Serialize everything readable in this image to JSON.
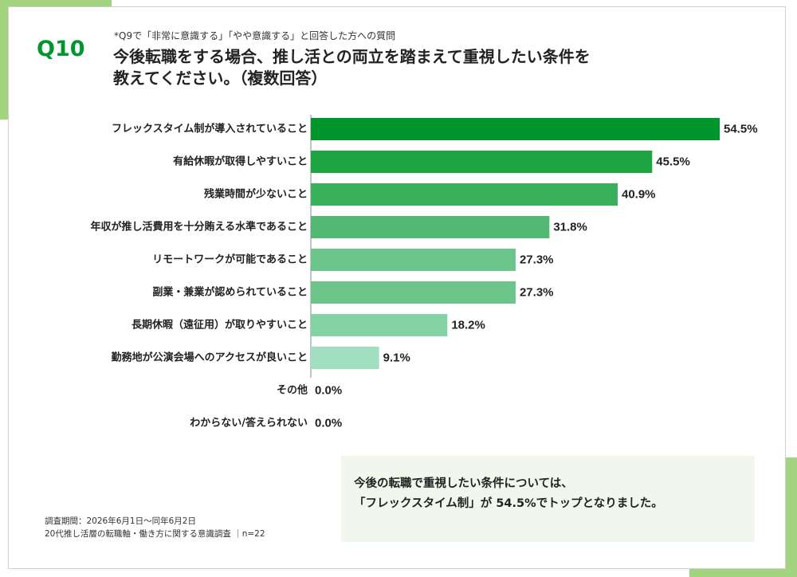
{
  "theme": {
    "accent": "#00962e",
    "frame_accent": "#a2d37f"
  },
  "header": {
    "question_no": "Q10",
    "note": "*Q9で「非常に意識する」「やや意識する」と回答した方への質問",
    "title_line1": "今後転職をする場合、推し活との両立を踏まえて重視したい条件を",
    "title_line2": "教えてください。（複数回答）"
  },
  "chart_data": {
    "type": "bar",
    "orientation": "horizontal",
    "title": "",
    "xlabel": "",
    "ylabel": "",
    "unit": "%",
    "xlim": [
      0,
      54.5
    ],
    "grid": false,
    "legend": "none",
    "categories": [
      "フレックスタイム制が導入されていること",
      "有給休暇が取得しやすいこと",
      "残業時間が少ないこと",
      "年収が推し活費用を十分賄える水準であること",
      "リモートワークが可能であること",
      "副業・兼業が認められていること",
      "長期休暇（遠征用）が取りやすいこと",
      "勤務地が公演会場へのアクセスが良いこと",
      "その他",
      "わからない/答えられない"
    ],
    "values": [
      54.5,
      45.5,
      40.9,
      31.8,
      27.3,
      27.3,
      18.2,
      9.1,
      0.0,
      0.0
    ],
    "value_labels": [
      "54.5%",
      "45.5%",
      "40.9%",
      "31.8%",
      "27.3%",
      "27.3%",
      "18.2%",
      "9.1%",
      "0.0%",
      "0.0%"
    ],
    "colors": [
      "#00962e",
      "#1fa442",
      "#3aaf5c",
      "#52b973",
      "#6cc58b",
      "#6cc58b",
      "#85d2a2",
      "#a0dfbf",
      "#b8e8cf",
      "#b8e8cf"
    ]
  },
  "summary": {
    "line1": "今後の転職で重視したい条件については、",
    "line2": "「フレックスタイム制」が 54.5%でトップとなりました。"
  },
  "footer": {
    "period": "調査期間：2026年6月1日～同年6月2日",
    "survey": "20代推し活層の転職軸・働き方に関する意識調査 ｜n=22"
  }
}
